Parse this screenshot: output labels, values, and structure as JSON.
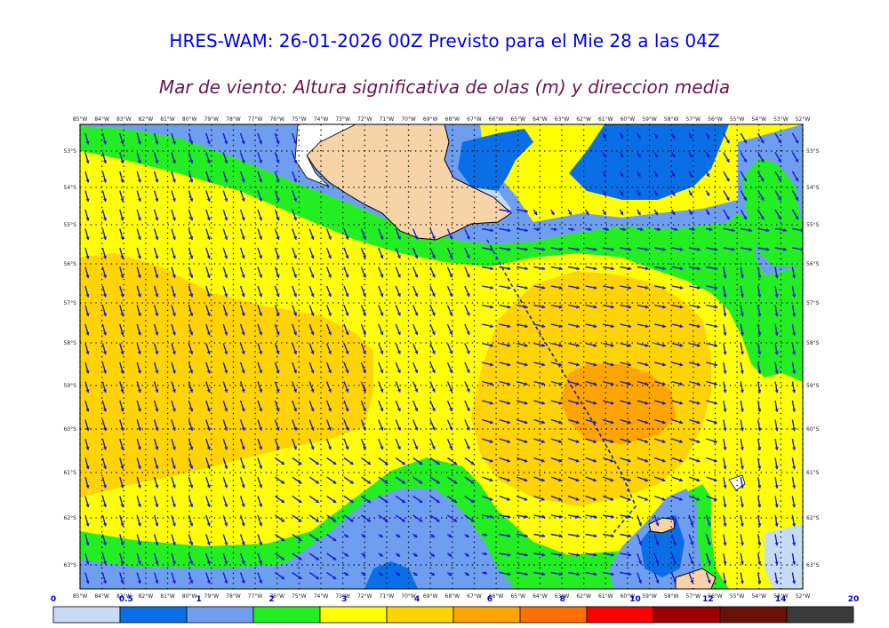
{
  "title": "HRES-WAM: 26-01-2026 00Z Previsto para el Mie 28 a las 04Z",
  "subtitle": "Mar de viento: Altura significativa de olas (m) y direccion media",
  "longitudes": [
    "85°W",
    "84°W",
    "83°W",
    "82°W",
    "81°W",
    "80°W",
    "79°W",
    "78°W",
    "77°W",
    "76°W",
    "75°W",
    "74°W",
    "73°W",
    "72°W",
    "71°W",
    "70°W",
    "69°W",
    "68°W",
    "67°W",
    "66°W",
    "65°W",
    "64°W",
    "63°W",
    "62°W",
    "61°W",
    "60°W",
    "59°W",
    "58°W",
    "57°W",
    "56°W",
    "55°W",
    "54°W",
    "53°W",
    "52°W"
  ],
  "latitudes": [
    "53°S",
    "54°S",
    "55°S",
    "56°S",
    "57°S",
    "58°S",
    "59°S",
    "60°S",
    "61°S",
    "62°S",
    "63°S"
  ],
  "colorbar": {
    "labels": [
      "0",
      "0.5",
      "1",
      "2",
      "3",
      "4",
      "6",
      "8",
      "10",
      "12",
      "14",
      "20"
    ],
    "colors": [
      "#c6dcf5",
      "#0a6fe6",
      "#6e9ef0",
      "#22ee22",
      "#ffff00",
      "#ffd400",
      "#ffa500",
      "#ff7000",
      "#ff0000",
      "#9a0000",
      "#6a1008",
      "#3a3a3a"
    ]
  },
  "legend_colors": {
    "land": "#f7d4a8",
    "arrow": "#1a1acc",
    "title": "#0000ee",
    "subtitle": "#6a1650"
  }
}
